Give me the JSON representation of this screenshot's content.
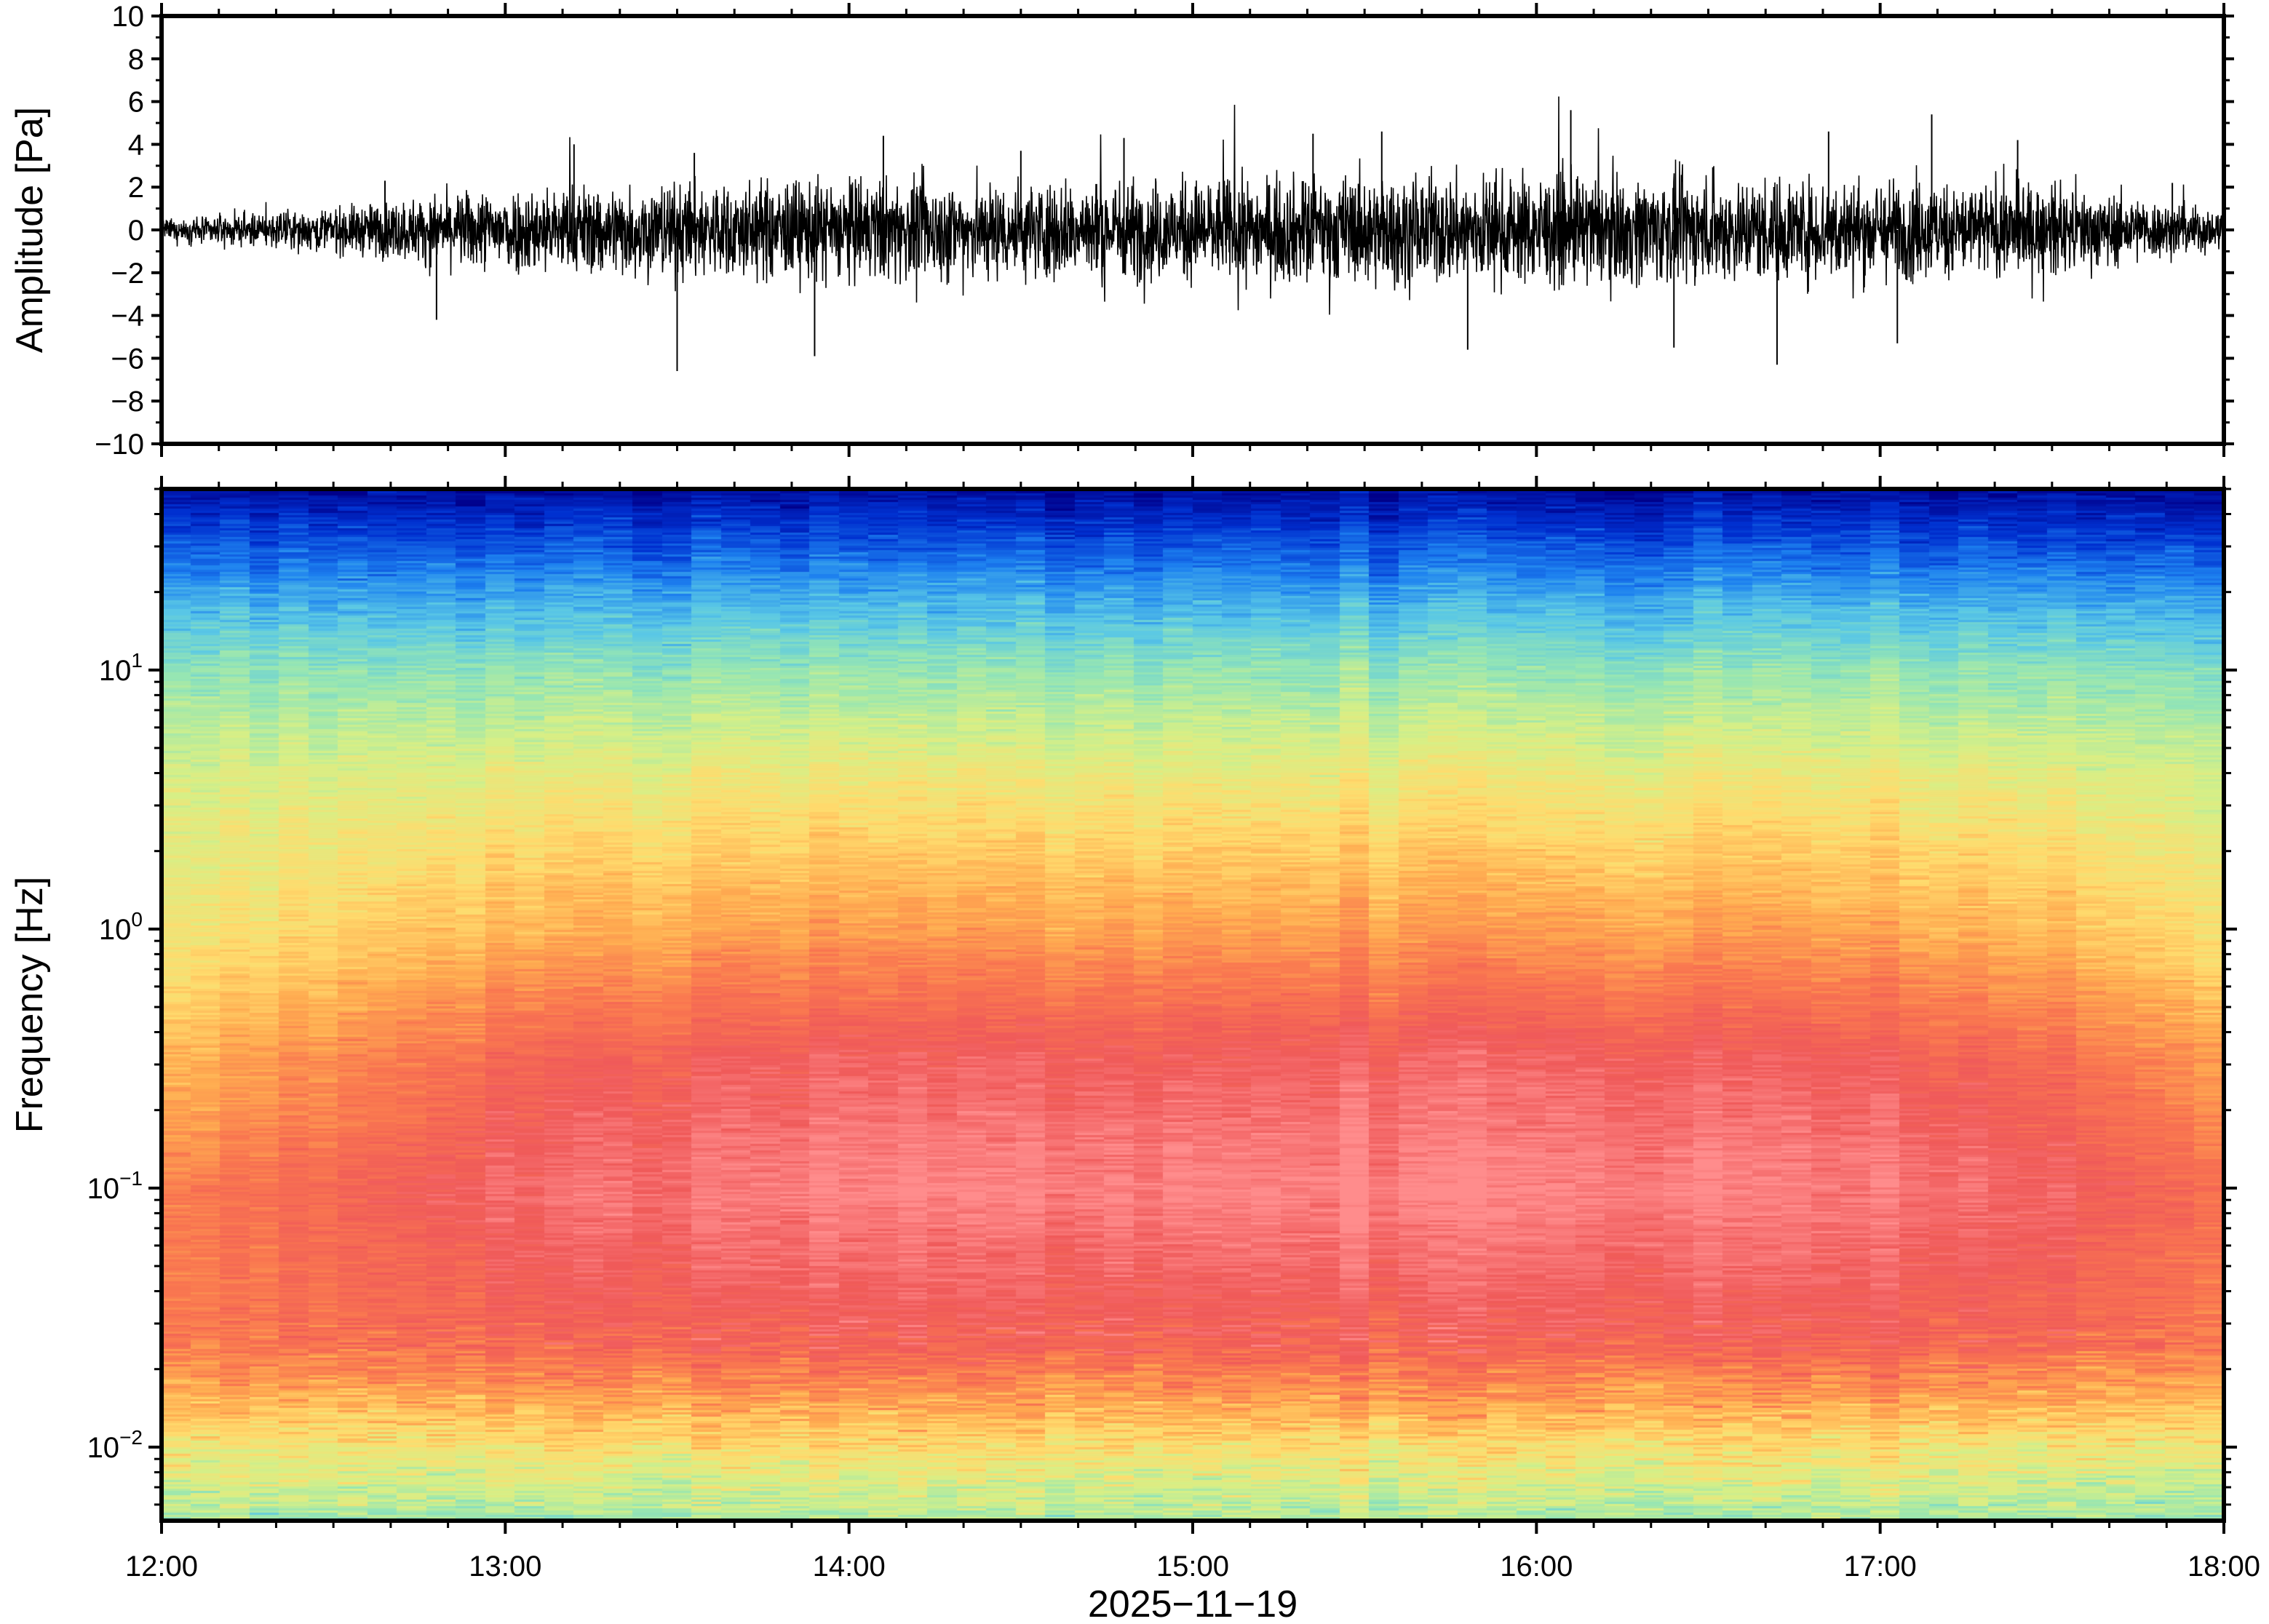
{
  "chart_data": [
    {
      "type": "line",
      "title": "",
      "xlabel": "",
      "ylabel": "Amplitude [Pa]",
      "ylim": [
        -10,
        10
      ],
      "yticks": [
        10,
        8,
        6,
        4,
        2,
        0,
        -2,
        -4,
        -6,
        -8,
        -10
      ],
      "ytick_labels": [
        "10",
        "8",
        "6",
        "4",
        "2",
        "0",
        "−2",
        "−4",
        "−6",
        "−8",
        "−10"
      ],
      "xlim": [
        "12:00",
        "18:00"
      ],
      "grid": false,
      "series": [
        {
          "envelope_hours": [
            12.0,
            12.5,
            13.0,
            13.5,
            14.0,
            14.5,
            15.0,
            15.5,
            16.0,
            16.5,
            17.0,
            17.5,
            18.0
          ],
          "envelope_amplitude": [
            0.6,
            1.3,
            2.5,
            2.8,
            3.0,
            2.9,
            3.0,
            3.2,
            3.2,
            3.1,
            3.0,
            2.6,
            1.2
          ],
          "peaks": [
            {
              "hour": 12.65,
              "value": 2.3
            },
            {
              "hour": 12.8,
              "value": -4.2
            },
            {
              "hour": 13.2,
              "value": 4.0
            },
            {
              "hour": 13.5,
              "value": -6.6
            },
            {
              "hour": 13.55,
              "value": 3.6
            },
            {
              "hour": 13.9,
              "value": -5.9
            },
            {
              "hour": 14.1,
              "value": 4.4
            },
            {
              "hour": 14.5,
              "value": 3.7
            },
            {
              "hour": 14.8,
              "value": 4.3
            },
            {
              "hour": 15.35,
              "value": 4.5
            },
            {
              "hour": 15.55,
              "value": 4.6
            },
            {
              "hour": 15.8,
              "value": -5.6
            },
            {
              "hour": 16.1,
              "value": 5.6
            },
            {
              "hour": 16.4,
              "value": -5.5
            },
            {
              "hour": 16.7,
              "value": -6.3
            },
            {
              "hour": 16.85,
              "value": 4.6
            },
            {
              "hour": 17.05,
              "value": -5.3
            },
            {
              "hour": 17.15,
              "value": 5.4
            },
            {
              "hour": 17.4,
              "value": 4.2
            },
            {
              "hour": 17.85,
              "value": 2.2
            }
          ]
        }
      ]
    },
    {
      "type": "heatmap",
      "title": "",
      "xlabel": "2025−11−19",
      "ylabel": "Frequency [Hz]",
      "yscale": "log",
      "ylim": [
        0.0052,
        50
      ],
      "xlim": [
        "12:00",
        "18:00"
      ],
      "x_tick_labels": [
        "12:00",
        "13:00",
        "14:00",
        "15:00",
        "16:00",
        "17:00",
        "18:00"
      ],
      "y_ticks": [
        {
          "base": "10",
          "exp": "1"
        },
        {
          "base": "10",
          "exp": "0"
        },
        {
          "base": "10",
          "exp": "−1"
        },
        {
          "base": "10",
          "exp": "−2"
        }
      ],
      "colormap": [
        "#00008a",
        "#0030d0",
        "#1e82f0",
        "#5ac8e6",
        "#96e6b4",
        "#d7f087",
        "#ffdc6e",
        "#ffaa50",
        "#fa7850",
        "#f05a5a",
        "#ff8c8c"
      ],
      "profile_log10_freq": [
        1.7,
        1.3,
        1.0,
        0.6,
        0.0,
        -0.5,
        -1.0,
        -1.6,
        -2.0,
        -2.28
      ],
      "profile_color_index": [
        0.3,
        2.5,
        4.0,
        5.4,
        6.9,
        8.7,
        9.5,
        8.6,
        5.8,
        4.3
      ],
      "time_modulation_hours": [
        12.0,
        12.5,
        13.0,
        14.0,
        15.0,
        16.0,
        17.0,
        17.5,
        18.0
      ],
      "time_modulation": [
        -1.5,
        -0.8,
        -0.1,
        0.3,
        0.3,
        0.4,
        0.2,
        -0.2,
        -0.9
      ],
      "grid": false
    }
  ]
}
